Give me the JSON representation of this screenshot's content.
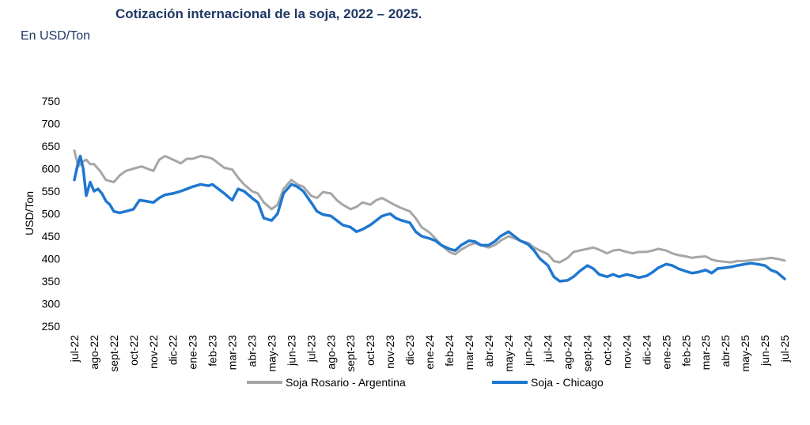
{
  "title": "Cotización internacional de la soja, 2022 – 2025.",
  "subtitle": "En USD/Ton",
  "colors": {
    "rosario": "#a6a6a6",
    "chicago": "#1f77d0",
    "title": "#1f3864"
  },
  "chart_data": {
    "type": "line",
    "ylabel": "USD/Ton",
    "xlabel": "",
    "ylim": [
      250,
      750
    ],
    "yticks": [
      750,
      700,
      650,
      600,
      550,
      500,
      450,
      400,
      350,
      300,
      250
    ],
    "grid": false,
    "legend_position": "bottom",
    "categories": [
      "jul-22",
      "ago-22",
      "sept-22",
      "oct-22",
      "nov-22",
      "dic-22",
      "ene-23",
      "feb-23",
      "mar-23",
      "abr-23",
      "may-23",
      "jun-23",
      "jul-23",
      "ago-23",
      "sept-23",
      "oct-23",
      "nov-23",
      "dic-23",
      "ene-24",
      "feb-24",
      "mar-24",
      "abr-24",
      "may-24",
      "jun-24",
      "jul-24",
      "ago-24",
      "sept-24",
      "oct-24",
      "nov-24",
      "dic-24",
      "ene-25",
      "feb-25",
      "mar-25",
      "abr-25",
      "may-25",
      "jun-25",
      "jul-25"
    ],
    "series": [
      {
        "name": "Soja Rosario - Argentina",
        "color": "#a6a6a6",
        "points": [
          [
            0,
            640
          ],
          [
            0.2,
            605
          ],
          [
            0.4,
            615
          ],
          [
            0.6,
            620
          ],
          [
            0.8,
            610
          ],
          [
            1,
            610
          ],
          [
            1.3,
            595
          ],
          [
            1.6,
            575
          ],
          [
            2,
            570
          ],
          [
            2.3,
            585
          ],
          [
            2.6,
            595
          ],
          [
            3,
            600
          ],
          [
            3.4,
            605
          ],
          [
            3.7,
            600
          ],
          [
            4,
            595
          ],
          [
            4.3,
            620
          ],
          [
            4.6,
            628
          ],
          [
            5,
            620
          ],
          [
            5.4,
            612
          ],
          [
            5.7,
            622
          ],
          [
            6,
            622
          ],
          [
            6.4,
            628
          ],
          [
            6.8,
            625
          ],
          [
            7,
            622
          ],
          [
            7.3,
            612
          ],
          [
            7.6,
            602
          ],
          [
            8,
            598
          ],
          [
            8.3,
            580
          ],
          [
            8.6,
            565
          ],
          [
            9,
            550
          ],
          [
            9.3,
            545
          ],
          [
            9.6,
            525
          ],
          [
            10,
            510
          ],
          [
            10.3,
            520
          ],
          [
            10.6,
            555
          ],
          [
            11,
            575
          ],
          [
            11.3,
            565
          ],
          [
            11.6,
            560
          ],
          [
            12,
            540
          ],
          [
            12.3,
            535
          ],
          [
            12.6,
            548
          ],
          [
            13,
            545
          ],
          [
            13.3,
            530
          ],
          [
            13.6,
            520
          ],
          [
            14,
            510
          ],
          [
            14.3,
            515
          ],
          [
            14.6,
            525
          ],
          [
            15,
            520
          ],
          [
            15.3,
            530
          ],
          [
            15.6,
            535
          ],
          [
            16,
            525
          ],
          [
            16.3,
            518
          ],
          [
            16.6,
            512
          ],
          [
            17,
            505
          ],
          [
            17.3,
            490
          ],
          [
            17.6,
            470
          ],
          [
            18,
            458
          ],
          [
            18.3,
            445
          ],
          [
            18.6,
            430
          ],
          [
            19,
            415
          ],
          [
            19.3,
            410
          ],
          [
            19.6,
            420
          ],
          [
            20,
            430
          ],
          [
            20.3,
            435
          ],
          [
            20.6,
            430
          ],
          [
            21,
            425
          ],
          [
            21.3,
            430
          ],
          [
            21.6,
            440
          ],
          [
            22,
            450
          ],
          [
            22.3,
            445
          ],
          [
            22.6,
            440
          ],
          [
            23,
            435
          ],
          [
            23.3,
            425
          ],
          [
            23.6,
            418
          ],
          [
            24,
            410
          ],
          [
            24.3,
            395
          ],
          [
            24.6,
            392
          ],
          [
            25,
            402
          ],
          [
            25.3,
            415
          ],
          [
            25.6,
            418
          ],
          [
            26,
            422
          ],
          [
            26.3,
            425
          ],
          [
            26.6,
            420
          ],
          [
            27,
            412
          ],
          [
            27.3,
            418
          ],
          [
            27.6,
            420
          ],
          [
            28,
            415
          ],
          [
            28.3,
            412
          ],
          [
            28.6,
            415
          ],
          [
            29,
            415
          ],
          [
            29.3,
            418
          ],
          [
            29.6,
            422
          ],
          [
            30,
            418
          ],
          [
            30.3,
            412
          ],
          [
            30.6,
            408
          ],
          [
            31,
            405
          ],
          [
            31.3,
            402
          ],
          [
            31.6,
            404
          ],
          [
            32,
            405
          ],
          [
            32.3,
            398
          ],
          [
            32.6,
            395
          ],
          [
            33,
            393
          ],
          [
            33.3,
            392
          ],
          [
            33.6,
            395
          ],
          [
            34,
            395
          ],
          [
            34.3,
            397
          ],
          [
            34.6,
            398
          ],
          [
            35,
            400
          ],
          [
            35.3,
            402
          ],
          [
            35.6,
            400
          ],
          [
            36,
            396
          ]
        ]
      },
      {
        "name": "Soja - Chicago",
        "color": "#1f77d0",
        "points": [
          [
            0,
            575
          ],
          [
            0.15,
            605
          ],
          [
            0.3,
            628
          ],
          [
            0.45,
            600
          ],
          [
            0.6,
            540
          ],
          [
            0.8,
            570
          ],
          [
            1,
            550
          ],
          [
            1.2,
            555
          ],
          [
            1.4,
            545
          ],
          [
            1.6,
            528
          ],
          [
            1.8,
            520
          ],
          [
            2,
            505
          ],
          [
            2.3,
            502
          ],
          [
            2.6,
            505
          ],
          [
            3,
            510
          ],
          [
            3.3,
            530
          ],
          [
            3.6,
            528
          ],
          [
            4,
            525
          ],
          [
            4.3,
            535
          ],
          [
            4.6,
            542
          ],
          [
            5,
            545
          ],
          [
            5.4,
            550
          ],
          [
            5.7,
            555
          ],
          [
            6,
            560
          ],
          [
            6.4,
            565
          ],
          [
            6.8,
            562
          ],
          [
            7,
            565
          ],
          [
            7.3,
            555
          ],
          [
            7.6,
            545
          ],
          [
            8,
            530
          ],
          [
            8.3,
            555
          ],
          [
            8.6,
            550
          ],
          [
            9,
            535
          ],
          [
            9.3,
            525
          ],
          [
            9.6,
            490
          ],
          [
            10,
            485
          ],
          [
            10.3,
            500
          ],
          [
            10.6,
            545
          ],
          [
            11,
            565
          ],
          [
            11.3,
            560
          ],
          [
            11.6,
            550
          ],
          [
            12,
            525
          ],
          [
            12.3,
            505
          ],
          [
            12.6,
            498
          ],
          [
            13,
            495
          ],
          [
            13.3,
            485
          ],
          [
            13.6,
            475
          ],
          [
            14,
            470
          ],
          [
            14.3,
            460
          ],
          [
            14.6,
            465
          ],
          [
            15,
            475
          ],
          [
            15.3,
            485
          ],
          [
            15.6,
            495
          ],
          [
            16,
            500
          ],
          [
            16.3,
            490
          ],
          [
            16.6,
            485
          ],
          [
            17,
            480
          ],
          [
            17.3,
            460
          ],
          [
            17.6,
            450
          ],
          [
            18,
            445
          ],
          [
            18.3,
            440
          ],
          [
            18.6,
            430
          ],
          [
            19,
            422
          ],
          [
            19.3,
            418
          ],
          [
            19.6,
            430
          ],
          [
            20,
            440
          ],
          [
            20.3,
            438
          ],
          [
            20.6,
            430
          ],
          [
            21,
            430
          ],
          [
            21.3,
            438
          ],
          [
            21.6,
            450
          ],
          [
            22,
            460
          ],
          [
            22.3,
            450
          ],
          [
            22.6,
            440
          ],
          [
            23,
            432
          ],
          [
            23.3,
            418
          ],
          [
            23.6,
            400
          ],
          [
            24,
            385
          ],
          [
            24.3,
            360
          ],
          [
            24.6,
            350
          ],
          [
            25,
            352
          ],
          [
            25.3,
            360
          ],
          [
            25.6,
            372
          ],
          [
            26,
            385
          ],
          [
            26.3,
            378
          ],
          [
            26.6,
            365
          ],
          [
            27,
            360
          ],
          [
            27.3,
            365
          ],
          [
            27.6,
            360
          ],
          [
            28,
            365
          ],
          [
            28.3,
            362
          ],
          [
            28.6,
            358
          ],
          [
            29,
            362
          ],
          [
            29.3,
            370
          ],
          [
            29.6,
            380
          ],
          [
            30,
            388
          ],
          [
            30.3,
            385
          ],
          [
            30.6,
            378
          ],
          [
            31,
            372
          ],
          [
            31.3,
            368
          ],
          [
            31.6,
            370
          ],
          [
            32,
            375
          ],
          [
            32.3,
            368
          ],
          [
            32.6,
            378
          ],
          [
            33,
            380
          ],
          [
            33.3,
            382
          ],
          [
            33.6,
            385
          ],
          [
            34,
            388
          ],
          [
            34.3,
            390
          ],
          [
            34.6,
            388
          ],
          [
            35,
            385
          ],
          [
            35.3,
            375
          ],
          [
            35.6,
            370
          ],
          [
            36,
            355
          ]
        ]
      }
    ]
  }
}
